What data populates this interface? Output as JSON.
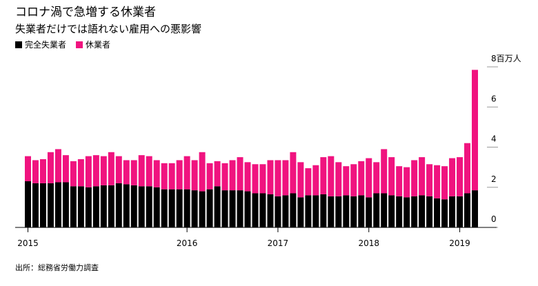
{
  "chart_data": {
    "type": "stacked-bar",
    "title": "コロナ渦で急増する休業者",
    "subtitle": "失業者だけでは語れない雇用への悪影響",
    "source": "出所：総務省労働力調査",
    "categories": [
      "2015",
      null,
      null,
      null,
      null,
      null,
      null,
      null,
      null,
      null,
      null,
      null,
      null,
      null,
      null,
      null,
      null,
      null,
      null,
      null,
      null,
      "2016",
      null,
      null,
      null,
      null,
      null,
      null,
      null,
      null,
      null,
      null,
      null,
      "2017",
      null,
      null,
      null,
      null,
      null,
      null,
      null,
      null,
      null,
      null,
      null,
      "2018",
      null,
      null,
      null,
      null,
      null,
      null,
      null,
      null,
      null,
      null,
      null,
      "2019",
      null,
      null
    ],
    "series": [
      {
        "name": "完全失業者",
        "color": "#000000",
        "values": [
          2.3,
          2.2,
          2.2,
          2.2,
          2.25,
          2.25,
          2.05,
          2.05,
          2.0,
          2.05,
          2.1,
          2.1,
          2.2,
          2.15,
          2.1,
          2.05,
          2.05,
          2.0,
          1.9,
          1.9,
          1.9,
          1.9,
          1.85,
          1.8,
          1.9,
          2.05,
          1.85,
          1.85,
          1.85,
          1.8,
          1.7,
          1.7,
          1.65,
          1.55,
          1.6,
          1.7,
          1.5,
          1.6,
          1.6,
          1.65,
          1.55,
          1.55,
          1.6,
          1.55,
          1.6,
          1.5,
          1.7,
          1.7,
          1.6,
          1.55,
          1.5,
          1.55,
          1.6,
          1.55,
          1.45,
          1.4,
          1.55,
          1.55,
          1.7,
          1.85
        ]
      },
      {
        "name": "休業者",
        "color": "#f0137f",
        "values": [
          1.25,
          1.15,
          1.2,
          1.55,
          1.65,
          1.35,
          1.25,
          1.35,
          1.55,
          1.55,
          1.45,
          1.65,
          1.35,
          1.2,
          1.25,
          1.55,
          1.5,
          1.35,
          1.3,
          1.3,
          1.45,
          1.65,
          1.5,
          1.95,
          1.3,
          1.25,
          1.35,
          1.5,
          1.65,
          1.45,
          1.45,
          1.45,
          1.7,
          1.8,
          1.75,
          2.05,
          1.75,
          1.35,
          1.5,
          1.85,
          2.0,
          1.7,
          1.45,
          1.6,
          1.7,
          1.95,
          1.55,
          2.2,
          1.9,
          1.5,
          1.5,
          1.8,
          1.9,
          1.6,
          1.65,
          1.65,
          1.9,
          1.95,
          2.5,
          6.0
        ]
      }
    ],
    "ylim": [
      0,
      8
    ],
    "yticks": [
      0,
      2,
      4,
      6,
      {
        "value": 8,
        "label": "8百万人"
      }
    ]
  }
}
